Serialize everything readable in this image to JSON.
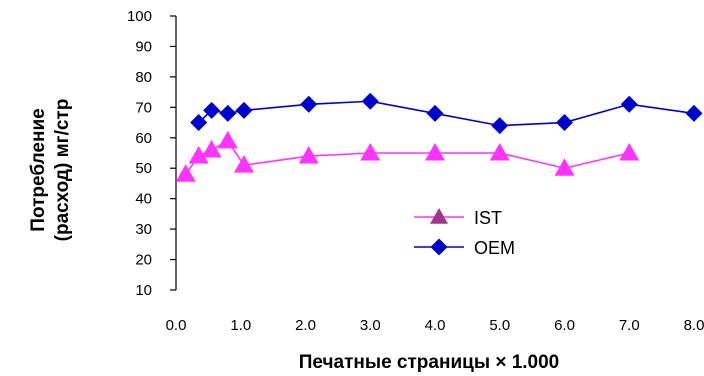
{
  "chart_data": {
    "type": "line",
    "title": "",
    "xlabel": "Печатные страницы × 1.000",
    "ylabel_line1": "Потребление",
    "ylabel_line2": "(расход) мг/стр",
    "xlim": [
      0,
      8
    ],
    "ylim": [
      10,
      100
    ],
    "x_ticks": [
      "0.0",
      "1.0",
      "2.0",
      "3.0",
      "4.0",
      "5.0",
      "6.0",
      "7.0",
      "8.0"
    ],
    "y_ticks": [
      "10",
      "20",
      "30",
      "40",
      "50",
      "60",
      "70",
      "80",
      "90",
      "100"
    ],
    "grid": false,
    "legend_position": "center-right",
    "series": [
      {
        "name": "IST",
        "marker": "triangle",
        "line_color": "#ff33ff",
        "marker_color": "#ff33ff",
        "legend_marker_color": "#a0388a",
        "x": [
          0.15,
          0.35,
          0.55,
          0.8,
          1.05,
          2.05,
          3.0,
          4.0,
          5.0,
          6.0,
          7.0
        ],
        "y": [
          48,
          54,
          56,
          59,
          51,
          54,
          55,
          55,
          55,
          50,
          55
        ]
      },
      {
        "name": "OEM",
        "marker": "diamond",
        "line_color": "#0000cc",
        "marker_color": "#0000cc",
        "legend_marker_color": "#0000cc",
        "x": [
          0.35,
          0.55,
          0.8,
          1.05,
          2.05,
          3.0,
          4.0,
          5.0,
          6.0,
          7.0,
          8.0
        ],
        "y": [
          65,
          69,
          68,
          69,
          71,
          72,
          68,
          64,
          65,
          71,
          68
        ]
      }
    ]
  }
}
